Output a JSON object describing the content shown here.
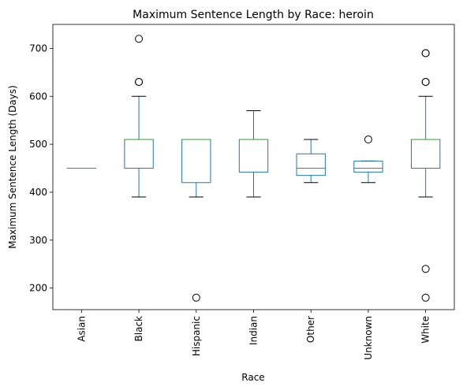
{
  "chart_data": {
    "type": "box",
    "title": "Maximum Sentence Length by Race: heroin",
    "xlabel": "Race",
    "ylabel": "Maximum Sentence Length (Days)",
    "ylim": [
      155,
      750
    ],
    "yticks": [
      200,
      300,
      400,
      500,
      600,
      700
    ],
    "grid": false,
    "categories": [
      "Asian",
      "Black",
      "Hispanic",
      "Indian",
      "Other",
      "Unknown",
      "White"
    ],
    "boxes": [
      {
        "category": "Asian",
        "whisker_low": 450,
        "q1": 450,
        "median": 450,
        "q3": 450,
        "whisker_high": 450,
        "outliers": []
      },
      {
        "category": "Black",
        "whisker_low": 390,
        "q1": 450,
        "median": 510,
        "q3": 510,
        "whisker_high": 600,
        "outliers": [
          630,
          630,
          720
        ]
      },
      {
        "category": "Hispanic",
        "whisker_low": 390,
        "q1": 420,
        "median": 510,
        "q3": 510,
        "whisker_high": 510,
        "outliers": [
          180
        ]
      },
      {
        "category": "Indian",
        "whisker_low": 390,
        "q1": 442,
        "median": 510,
        "q3": 510,
        "whisker_high": 570,
        "outliers": []
      },
      {
        "category": "Other",
        "whisker_low": 420,
        "q1": 435,
        "median": 450,
        "q3": 480,
        "whisker_high": 510,
        "outliers": []
      },
      {
        "category": "Unknown",
        "whisker_low": 420,
        "q1": 442,
        "median": 450,
        "q3": 465,
        "whisker_high": 465,
        "outliers": [
          510
        ]
      },
      {
        "category": "White",
        "whisker_low": 390,
        "q1": 450,
        "median": 510,
        "q3": 510,
        "whisker_high": 600,
        "outliers": [
          180,
          240,
          630,
          630,
          690,
          690
        ]
      }
    ],
    "colors": {
      "box": "#1f77b4",
      "median": "#2ca02c",
      "whisker": "#1f77b4",
      "cap": "#000000",
      "outlier": "#000000",
      "axis": "#000000"
    }
  }
}
